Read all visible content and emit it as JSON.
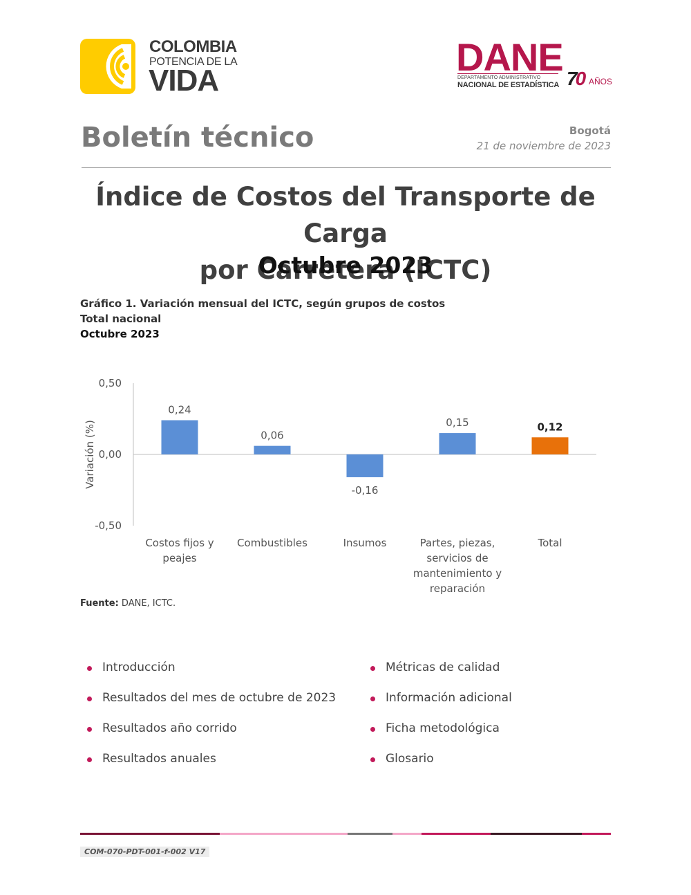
{
  "header": {
    "logo_left": {
      "line1": "COLOMBIA",
      "line2": "POTENCIA DE LA",
      "line3": "VIDA"
    },
    "logo_right": {
      "name": "DANE",
      "sub1": "DEPARTAMENTO ADMINISTRATIVO",
      "sub2": "NACIONAL DE ESTADÍSTICA",
      "anniv_num_a": "7",
      "anniv_num_b": "0",
      "anniv_text": "AÑOS"
    },
    "doc_type": "Boletín técnico",
    "city": "Bogotá",
    "date": "21 de noviembre de 2023"
  },
  "title": {
    "line1": "Índice de Costos del Transporte de Carga",
    "line2": "por Carretera (ICTC)",
    "subtitle": "Octubre 2023"
  },
  "chart_caption": {
    "line1": "Gráfico 1. Variación mensual del ICTC, según grupos de costos",
    "line2": "Total nacional",
    "line3": "Octubre 2023"
  },
  "chart_data": {
    "type": "bar",
    "categories": [
      [
        "Costos fijos y",
        "peajes"
      ],
      [
        "Combustibles"
      ],
      [
        "Insumos"
      ],
      [
        "Partes, piezas,",
        "servicios de",
        "mantenimiento y",
        "reparación"
      ],
      [
        "Total"
      ]
    ],
    "values": [
      0.24,
      0.06,
      -0.16,
      0.15,
      0.12
    ],
    "value_labels": [
      "0,24",
      "0,06",
      "-0,16",
      "0,15",
      "0,12"
    ],
    "bar_colors": [
      "#5b8fd6",
      "#5b8fd6",
      "#5b8fd6",
      "#5b8fd6",
      "#e8710a"
    ],
    "highlight_index": 4,
    "ylabel": "Variación (%)",
    "ylim": [
      -0.5,
      0.5
    ],
    "yticks": [
      0.5,
      0.0,
      -0.5
    ],
    "ytick_labels": [
      "0,50",
      "0,00",
      "-0,50"
    ],
    "grid": false
  },
  "source": {
    "label": "Fuente:",
    "text": " DANE, ICTC."
  },
  "toc": {
    "left": [
      "Introducción",
      "Resultados del mes de octubre de 2023",
      "Resultados año corrido",
      "Resultados anuales"
    ],
    "right": [
      "Métricas de calidad",
      "Información adicional",
      "Ficha metodológica",
      "Glosario"
    ]
  },
  "footer": {
    "code": "COM-070-PDT-001-f-002 V17",
    "bar_colors": [
      "#7a1436",
      "#f4a7c8",
      "#777777",
      "#f4a7c8",
      "#c21a5a",
      "#3a1a24",
      "#c21a5a"
    ]
  },
  "colors": {
    "accent": "#b5174c",
    "bullet": "#c21a5a",
    "bar": "#5b8fd6",
    "bar_highlight": "#e8710a",
    "logo_yellow": "#ffcc00"
  }
}
